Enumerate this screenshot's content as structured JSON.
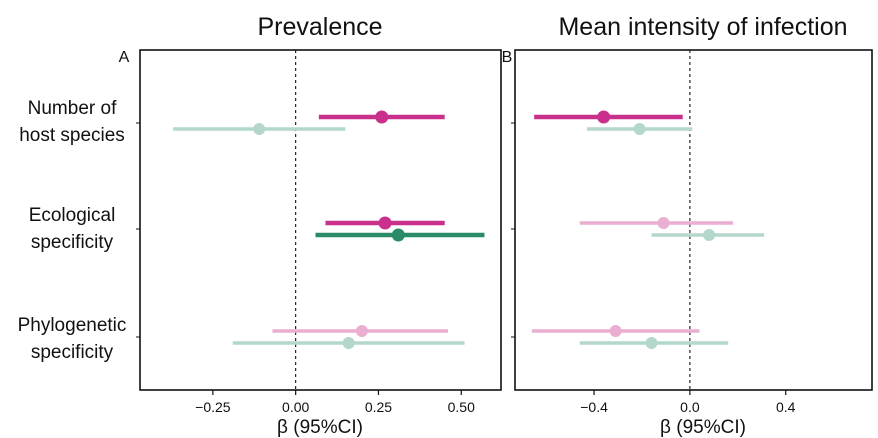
{
  "colors": {
    "magenta": "#c8308c",
    "green": "#2a8c66",
    "faded_magenta": "#e9aed0",
    "faded_green": "#b3d8cb",
    "axis": "#111111"
  },
  "row_labels": [
    [
      "Number of",
      "host species"
    ],
    [
      "Ecological",
      "specificity"
    ],
    [
      "Phylogenetic",
      "specificity"
    ]
  ],
  "chart_data": [
    {
      "type": "scatter",
      "panel_letter": "A",
      "title": "Prevalence",
      "xlabel": "β (95%CI)",
      "xlim": [
        -0.47,
        0.62
      ],
      "xticks": [
        -0.25,
        0.0,
        0.25,
        0.5
      ],
      "xtick_labels": [
        "−0.25",
        "0.00",
        "0.25",
        "0.50"
      ],
      "reference_line": 0,
      "categories": [
        "Number of host species",
        "Ecological specificity",
        "Phylogenetic specificity"
      ],
      "series": [
        {
          "color_key": "magenta",
          "estimates": [
            {
              "category": "Number of host species",
              "estimate": 0.26,
              "lower": 0.07,
              "upper": 0.45,
              "significant": true
            },
            {
              "category": "Ecological specificity",
              "estimate": 0.27,
              "lower": 0.09,
              "upper": 0.45,
              "significant": true
            },
            {
              "category": "Phylogenetic specificity",
              "estimate": 0.2,
              "lower": -0.07,
              "upper": 0.46,
              "significant": false
            }
          ]
        },
        {
          "color_key": "green",
          "estimates": [
            {
              "category": "Number of host species",
              "estimate": -0.11,
              "lower": -0.37,
              "upper": 0.15,
              "significant": false
            },
            {
              "category": "Ecological specificity",
              "estimate": 0.31,
              "lower": 0.06,
              "upper": 0.57,
              "significant": true
            },
            {
              "category": "Phylogenetic specificity",
              "estimate": 0.16,
              "lower": -0.19,
              "upper": 0.51,
              "significant": false
            }
          ]
        }
      ]
    },
    {
      "type": "scatter",
      "panel_letter": "B",
      "title": "Mean intensity of infection",
      "xlabel": "β (95%CI)",
      "xlim": [
        -0.73,
        0.76
      ],
      "xticks": [
        -0.4,
        0.0,
        0.4
      ],
      "xtick_labels": [
        "−0.4",
        "0.0",
        "0.4"
      ],
      "reference_line": 0,
      "categories": [
        "Number of host species",
        "Ecological specificity",
        "Phylogenetic specificity"
      ],
      "series": [
        {
          "color_key": "magenta",
          "estimates": [
            {
              "category": "Number of host species",
              "estimate": -0.36,
              "lower": -0.65,
              "upper": -0.03,
              "significant": true
            },
            {
              "category": "Ecological specificity",
              "estimate": -0.11,
              "lower": -0.46,
              "upper": 0.18,
              "significant": false
            },
            {
              "category": "Phylogenetic specificity",
              "estimate": -0.31,
              "lower": -0.66,
              "upper": 0.04,
              "significant": false
            }
          ]
        },
        {
          "color_key": "green",
          "estimates": [
            {
              "category": "Number of host species",
              "estimate": -0.21,
              "lower": -0.43,
              "upper": 0.01,
              "significant": false
            },
            {
              "category": "Ecological specificity",
              "estimate": 0.08,
              "lower": -0.16,
              "upper": 0.31,
              "significant": false
            },
            {
              "category": "Phylogenetic specificity",
              "estimate": -0.16,
              "lower": -0.46,
              "upper": 0.16,
              "significant": false
            }
          ]
        }
      ]
    }
  ]
}
